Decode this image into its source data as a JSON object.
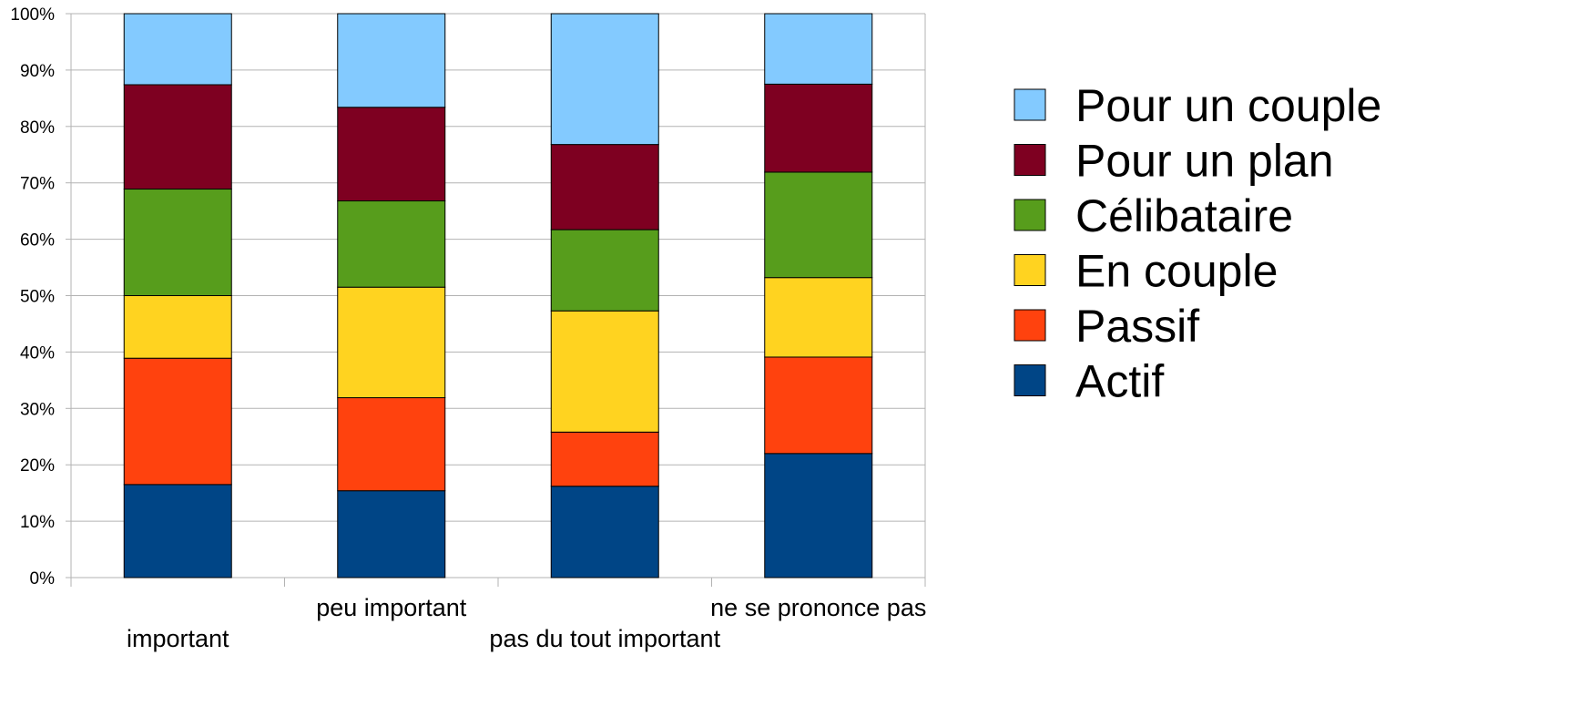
{
  "chart_data": {
    "type": "bar",
    "stacked": true,
    "normalized": true,
    "title": "",
    "xlabel": "",
    "ylabel": "",
    "categories": [
      "important",
      "peu important",
      "pas du tout important",
      "ne se prononce pas"
    ],
    "ylim": [
      0,
      100
    ],
    "y_ticks": [
      "0%",
      "10%",
      "20%",
      "30%",
      "40%",
      "50%",
      "60%",
      "70%",
      "80%",
      "90%",
      "100%"
    ],
    "grid": true,
    "legend_position": "right",
    "series": [
      {
        "name": "Actif",
        "color": "#004586",
        "values": [
          16.5,
          15.4,
          16.2,
          22
        ]
      },
      {
        "name": "Passif",
        "color": "#ff420e",
        "values": [
          22.4,
          16.5,
          9.6,
          17.1
        ]
      },
      {
        "name": "En couple",
        "color": "#ffd320",
        "values": [
          11.1,
          19.6,
          21.5,
          14.1
        ]
      },
      {
        "name": "Célibataire",
        "color": "#579d1c",
        "values": [
          18.9,
          15.3,
          14.4,
          18.7
        ]
      },
      {
        "name": "Pour un plan",
        "color": "#7e0021",
        "values": [
          18.5,
          16.6,
          15.1,
          15.6
        ]
      },
      {
        "name": "Pour un couple",
        "color": "#83caff",
        "values": [
          12.6,
          16.6,
          23.2,
          12.5
        ]
      }
    ]
  }
}
